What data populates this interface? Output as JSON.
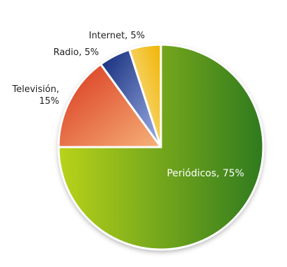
{
  "chart_data": {
    "type": "pie",
    "title": "",
    "slices": [
      {
        "label": "Periódicos, 75%",
        "value": 75,
        "color_light": "#b9d31a",
        "color_dark": "#2f7a1e"
      },
      {
        "label": "Televisión, 15%",
        "label_lines": [
          "Televisión,",
          "15%"
        ],
        "value": 15,
        "color_light": "#f6b27a",
        "color_dark": "#d9351c"
      },
      {
        "label": "Radio, 5%",
        "value": 5,
        "color_light": "#9fb0e6",
        "color_dark": "#102a7a"
      },
      {
        "label": "Internet, 5%",
        "value": 5,
        "color_light": "#fbe8b0",
        "color_dark": "#f0b400"
      }
    ],
    "start_angle_deg": 0,
    "direction": "clockwise",
    "legend": "none",
    "data_labels": "outside-except-largest"
  }
}
